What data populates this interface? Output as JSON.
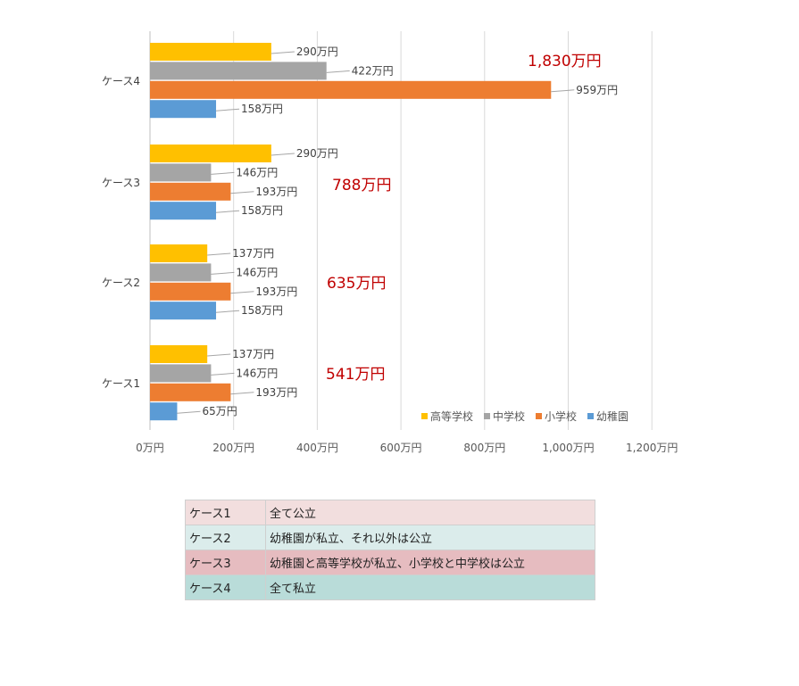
{
  "chart_data": {
    "type": "bar",
    "orientation": "horizontal",
    "categories": [
      "ケース1",
      "ケース2",
      "ケース3",
      "ケース4"
    ],
    "series": [
      {
        "name": "高等学校",
        "color": "#ffc000",
        "values": [
          137,
          137,
          290,
          290
        ],
        "labels": [
          "137万円",
          "137万円",
          "290万円",
          "290万円"
        ]
      },
      {
        "name": "中学校",
        "color": "#a5a5a5",
        "values": [
          146,
          146,
          146,
          422
        ],
        "labels": [
          "146万円",
          "146万円",
          "146万円",
          "422万円"
        ]
      },
      {
        "name": "小学校",
        "color": "#ed7d31",
        "values": [
          193,
          193,
          193,
          959
        ],
        "labels": [
          "193万円",
          "193万円",
          "193万円",
          "959万円"
        ]
      },
      {
        "name": "幼稚園",
        "color": "#5b9bd5",
        "values": [
          65,
          158,
          158,
          158
        ],
        "labels": [
          "65万円",
          "158万円",
          "158万円",
          "158万円"
        ]
      }
    ],
    "totals": [
      "541万円",
      "635万円",
      "788万円",
      "1,830万円"
    ],
    "total_color": "#c00000",
    "xlim": [
      0,
      1200
    ],
    "xticks": [
      0,
      200,
      400,
      600,
      800,
      1000,
      1200
    ],
    "xtick_labels": [
      "0万円",
      "200万円",
      "400万円",
      "600万円",
      "800万円",
      "1,000万円",
      "1,200万円"
    ],
    "grid": true,
    "legend": "bottom-right",
    "title": "",
    "xlabel": "",
    "ylabel": ""
  },
  "case_table": [
    {
      "key": "ケース1",
      "desc": "全て公立"
    },
    {
      "key": "ケース2",
      "desc": "幼稚園が私立、それ以外は公立"
    },
    {
      "key": "ケース3",
      "desc": "幼稚園と高等学校が私立、小学校と中学校は公立"
    },
    {
      "key": "ケース4",
      "desc": "全て私立"
    }
  ]
}
